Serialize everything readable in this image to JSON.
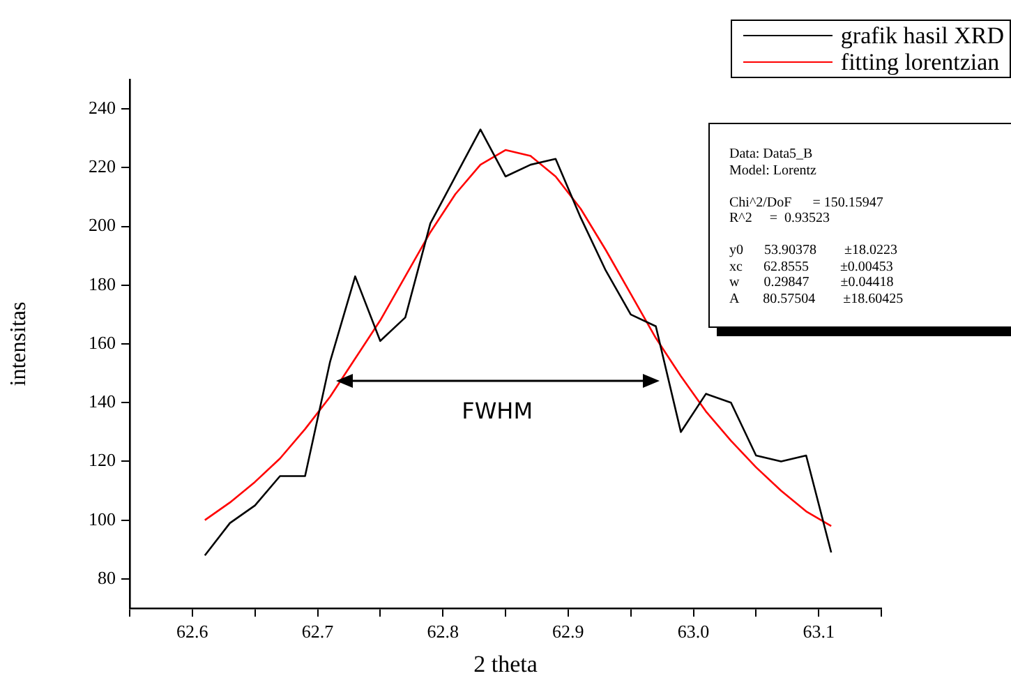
{
  "chart_data": {
    "type": "line",
    "xlabel": "2 theta",
    "ylabel": "intensitas",
    "xlim": [
      62.55,
      63.15
    ],
    "xticks": [
      {
        "value": 62.55,
        "label": null
      },
      {
        "value": 62.6,
        "label": "62.6"
      },
      {
        "value": 62.65,
        "label": null
      },
      {
        "value": 62.7,
        "label": "62.7"
      },
      {
        "value": 62.75,
        "label": null
      },
      {
        "value": 62.8,
        "label": "62.8"
      },
      {
        "value": 62.85,
        "label": null
      },
      {
        "value": 62.9,
        "label": "62.9"
      },
      {
        "value": 62.95,
        "label": null
      },
      {
        "value": 63.0,
        "label": "63.0"
      },
      {
        "value": 63.05,
        "label": null
      },
      {
        "value": 63.1,
        "label": "63.1"
      },
      {
        "value": 63.15,
        "label": null
      }
    ],
    "ylim": [
      70,
      250
    ],
    "yticks": [
      80,
      100,
      120,
      140,
      160,
      180,
      200,
      220,
      240
    ],
    "grid": false,
    "legend": "top right",
    "marker": "none",
    "line_style": "solid",
    "x": [
      62.61,
      62.63,
      62.65,
      62.67,
      62.69,
      62.71,
      62.73,
      62.75,
      62.77,
      62.79,
      62.81,
      62.83,
      62.85,
      62.87,
      62.89,
      62.91,
      62.93,
      62.95,
      62.97,
      62.99,
      63.01,
      63.03,
      63.05,
      63.07,
      63.09,
      63.11
    ],
    "series": [
      {
        "name": "grafik hasil XRD",
        "color": "#000000",
        "values": [
          88,
          99,
          105,
          115,
          115,
          154,
          183,
          161,
          169,
          201,
          217,
          233,
          217,
          221,
          223,
          203,
          185,
          170,
          166,
          130,
          143,
          140,
          122,
          120,
          122,
          89
        ]
      },
      {
        "name": "fitting lorentzian",
        "color": "#ff0000",
        "values": [
          100,
          106,
          113,
          121,
          131,
          142,
          155,
          168,
          183,
          198,
          211,
          221,
          226,
          224,
          217,
          206,
          192,
          177,
          162,
          149,
          137,
          127,
          118,
          110,
          103,
          98
        ]
      }
    ],
    "annotations": [
      "FWHM",
      "Data: Data5_B",
      "Model: Lorentz",
      "Chi^2/DoF      = 150.15947",
      "R^2     =  0.93523",
      "y0      53.90378        ±18.0223",
      "xc      62.8555         ±0.00453",
      "w       0.29847         ±0.04418",
      "A       80.57504        ±18.60425"
    ]
  }
}
